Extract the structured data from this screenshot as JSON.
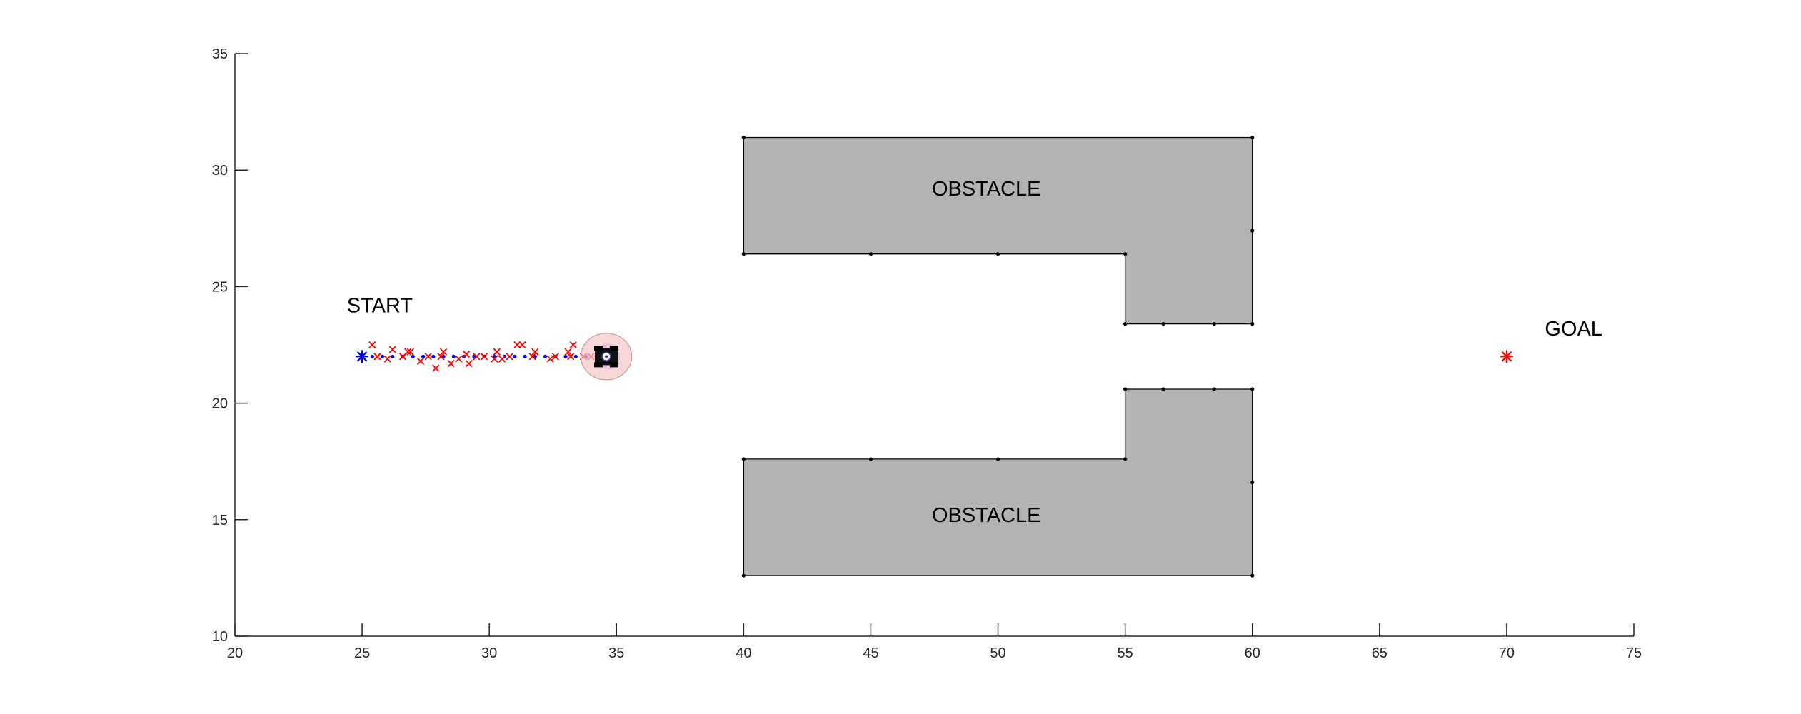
{
  "chart_data": {
    "type": "scatter",
    "xlim": [
      20,
      75
    ],
    "ylim": [
      10,
      35
    ],
    "x_ticks": [
      20,
      25,
      30,
      35,
      40,
      45,
      50,
      55,
      60,
      65,
      70,
      75
    ],
    "y_ticks": [
      10,
      15,
      20,
      25,
      30,
      35
    ],
    "grid": false,
    "colors": {
      "obstacle_fill": "#b3b3b3",
      "obstacle_edge": "#000000",
      "path": "#0000ff",
      "measurements": "#ff0000",
      "start_marker": "#0000ff",
      "goal_marker": "#ff0000",
      "robot_body": "#111111",
      "uncertainty_ellipse": "#f4c6c6"
    },
    "annotations": [
      {
        "text": "START",
        "x": 24.4,
        "y": 23.9
      },
      {
        "text": "GOAL",
        "x": 71.5,
        "y": 22.9
      },
      {
        "text": "OBSTACLE",
        "x": 47.4,
        "y": 28.9
      },
      {
        "text": "OBSTACLE",
        "x": 47.4,
        "y": 14.9
      }
    ],
    "obstacles": [
      {
        "name": "upper",
        "polygon": [
          [
            40,
            31.4
          ],
          [
            60,
            31.4
          ],
          [
            60,
            23.4
          ],
          [
            55,
            23.4
          ],
          [
            55,
            26.4
          ],
          [
            40,
            26.4
          ]
        ],
        "vertices": [
          [
            40,
            31.4
          ],
          [
            60,
            31.4
          ],
          [
            60,
            27.4
          ],
          [
            60,
            23.4
          ],
          [
            58.5,
            23.4
          ],
          [
            56.5,
            23.4
          ],
          [
            55,
            23.4
          ],
          [
            55,
            26.4
          ],
          [
            50,
            26.4
          ],
          [
            45,
            26.4
          ],
          [
            40,
            26.4
          ]
        ]
      },
      {
        "name": "lower",
        "polygon": [
          [
            40,
            17.6
          ],
          [
            55,
            17.6
          ],
          [
            55,
            20.6
          ],
          [
            60,
            20.6
          ],
          [
            60,
            12.6
          ],
          [
            40,
            12.6
          ]
        ],
        "vertices": [
          [
            40,
            17.6
          ],
          [
            45,
            17.6
          ],
          [
            50,
            17.6
          ],
          [
            55,
            17.6
          ],
          [
            55,
            20.6
          ],
          [
            56.5,
            20.6
          ],
          [
            58.5,
            20.6
          ],
          [
            60,
            20.6
          ],
          [
            60,
            16.6
          ],
          [
            60,
            12.6
          ],
          [
            40,
            12.6
          ]
        ]
      }
    ],
    "start": {
      "x": 25,
      "y": 22
    },
    "goal": {
      "x": 70,
      "y": 22
    },
    "robot": {
      "x": 34.6,
      "y": 22.0,
      "ellipse_rx": 1.0,
      "ellipse_ry": 1.0
    },
    "path": {
      "x": [
        25.0,
        25.4,
        25.8,
        26.2,
        26.6,
        27.0,
        27.4,
        27.8,
        28.2,
        28.6,
        29.0,
        29.4,
        29.8,
        30.2,
        30.6,
        31.0,
        31.4,
        31.8,
        32.2,
        32.6,
        33.0,
        33.4,
        33.8,
        34.2
      ],
      "y": [
        22.0,
        22.0,
        22.0,
        22.0,
        22.0,
        22.0,
        22.0,
        22.0,
        22.0,
        22.0,
        22.0,
        22.0,
        22.0,
        22.0,
        22.0,
        22.0,
        22.0,
        22.0,
        22.0,
        22.0,
        22.0,
        22.0,
        22.0,
        22.0
      ]
    },
    "measurements": {
      "x": [
        25.4,
        25.6,
        26.0,
        26.2,
        26.6,
        26.8,
        26.9,
        27.3,
        27.6,
        27.9,
        28.1,
        28.2,
        28.5,
        28.8,
        29.1,
        29.2,
        29.5,
        29.8,
        30.2,
        30.3,
        30.5,
        30.8,
        31.1,
        31.3,
        31.7,
        31.8,
        32.4,
        32.6,
        33.1,
        33.2,
        33.3,
        33.7,
        34.0
      ],
      "y": [
        22.5,
        22.0,
        21.9,
        22.3,
        22.0,
        22.2,
        22.2,
        21.8,
        22.0,
        21.5,
        22.0,
        22.2,
        21.7,
        21.9,
        22.1,
        21.7,
        22.0,
        22.0,
        21.9,
        22.2,
        21.9,
        22.0,
        22.5,
        22.5,
        22.0,
        22.2,
        21.9,
        22.0,
        22.2,
        22.0,
        22.5,
        22.0,
        22.0
      ]
    }
  }
}
